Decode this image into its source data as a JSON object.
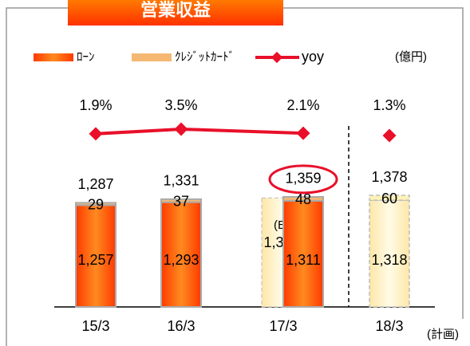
{
  "chart_data": {
    "type": "bar",
    "title": "営業収益",
    "unit_label": "(億円)",
    "footnote": "(計画)",
    "categories": [
      "15/3",
      "16/3",
      "17/3",
      "18/3"
    ],
    "series": [
      {
        "name": "ﾛｰﾝ",
        "color": "#ff5a10",
        "values": [
          1257,
          1293,
          1311,
          1318
        ]
      },
      {
        "name": "ｸﾚｼﾞｯﾄｶｰﾄﾞ",
        "color": "#f5b872",
        "values": [
          29,
          37,
          48,
          60
        ]
      }
    ],
    "totals": [
      1287,
      1331,
      1359,
      1378
    ],
    "total_labels": [
      "1,287",
      "1,331",
      "1,359",
      "1,378"
    ],
    "loan_labels": [
      "1,257",
      "1,293",
      "1,311",
      "1,318"
    ],
    "estimate": {
      "label": "(E)",
      "value": 1346,
      "value_label": "1,346"
    },
    "yoy": {
      "name": "yoy",
      "color": "#e8102a",
      "values": [
        1.9,
        3.5,
        2.1,
        1.3
      ],
      "value_labels": [
        "1.9%",
        "3.5%",
        "2.1%",
        "1.3%"
      ]
    }
  }
}
